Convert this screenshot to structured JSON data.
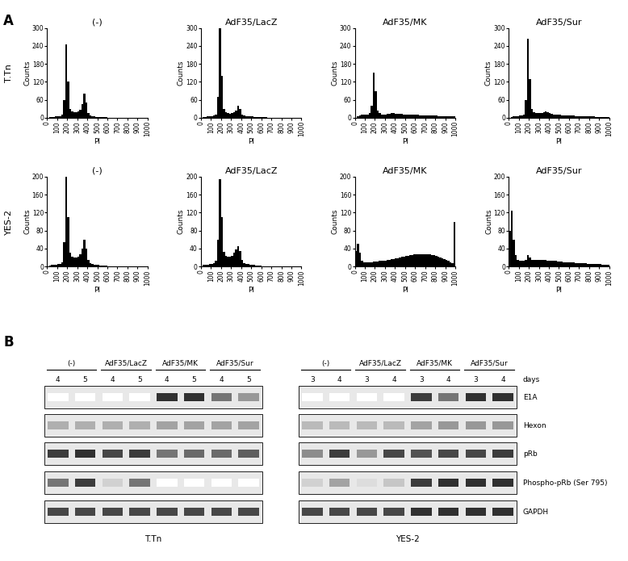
{
  "histogram_panel": {
    "panel_label": "A",
    "row_labels": [
      "T.Tn",
      "YES-2"
    ]
  },
  "chart_data": [
    {
      "type": "histogram",
      "title": "(-)",
      "xlabel": "PI",
      "ylabel": "Counts",
      "color": "#000000",
      "bins": [
        0,
        20,
        40,
        60,
        80,
        100,
        120,
        140,
        160,
        180,
        200,
        220,
        240,
        260,
        280,
        300,
        320,
        340,
        360,
        380,
        400,
        420,
        440,
        460,
        480,
        500,
        520,
        540,
        560,
        580,
        600,
        620,
        640,
        660,
        680,
        700,
        720,
        740,
        760,
        780,
        800,
        820,
        840,
        860,
        880,
        900,
        920,
        940,
        960,
        980,
        1000
      ],
      "counts": [
        0,
        2,
        3,
        3,
        4,
        5,
        6,
        10,
        60,
        245,
        120,
        30,
        22,
        20,
        20,
        22,
        28,
        45,
        80,
        50,
        15,
        8,
        5,
        4,
        3,
        3,
        2,
        2,
        2,
        2,
        1,
        1,
        1,
        1,
        1,
        1,
        1,
        0,
        0,
        0,
        0,
        0,
        0,
        0,
        0,
        0,
        0,
        0,
        0,
        0
      ],
      "xlim": [
        0,
        1000
      ],
      "ylim": [
        0,
        300
      ],
      "xticks": [
        0,
        100,
        200,
        300,
        400,
        500,
        600,
        700,
        800,
        900,
        1000
      ],
      "yticks": [
        0,
        60,
        120,
        180,
        240,
        300
      ]
    },
    {
      "type": "histogram",
      "title": "AdF35/LacZ",
      "xlabel": "PI",
      "ylabel": "Counts",
      "color": "#000000",
      "bins": [
        0,
        20,
        40,
        60,
        80,
        100,
        120,
        140,
        160,
        180,
        200,
        220,
        240,
        260,
        280,
        300,
        320,
        340,
        360,
        380,
        400,
        420,
        440,
        460,
        480,
        500,
        520,
        540,
        560,
        580,
        600,
        620,
        640,
        660,
        680,
        700,
        720,
        740,
        760,
        780,
        800,
        820,
        840,
        860,
        880,
        900,
        920,
        940,
        960,
        980,
        1000
      ],
      "counts": [
        0,
        2,
        3,
        4,
        5,
        6,
        8,
        12,
        70,
        300,
        140,
        30,
        18,
        15,
        14,
        15,
        18,
        25,
        40,
        30,
        12,
        8,
        6,
        5,
        4,
        4,
        3,
        3,
        3,
        2,
        2,
        2,
        2,
        1,
        1,
        1,
        1,
        1,
        1,
        0,
        0,
        0,
        0,
        0,
        0,
        0,
        0,
        0,
        0,
        0
      ],
      "xlim": [
        0,
        1000
      ],
      "ylim": [
        0,
        300
      ],
      "xticks": [
        0,
        100,
        200,
        300,
        400,
        500,
        600,
        700,
        800,
        900,
        1000
      ],
      "yticks": [
        0,
        60,
        120,
        180,
        240,
        300
      ]
    },
    {
      "type": "histogram",
      "title": "AdF35/MK",
      "xlabel": "PI",
      "ylabel": "Counts",
      "color": "#000000",
      "bins": [
        0,
        20,
        40,
        60,
        80,
        100,
        120,
        140,
        160,
        180,
        200,
        220,
        240,
        260,
        280,
        300,
        320,
        340,
        360,
        380,
        400,
        420,
        440,
        460,
        480,
        500,
        520,
        540,
        560,
        580,
        600,
        620,
        640,
        660,
        680,
        700,
        720,
        740,
        760,
        780,
        800,
        820,
        840,
        860,
        880,
        900,
        920,
        940,
        960,
        980,
        1000
      ],
      "counts": [
        0,
        5,
        8,
        10,
        10,
        12,
        12,
        15,
        40,
        150,
        90,
        25,
        15,
        12,
        12,
        12,
        13,
        14,
        16,
        15,
        14,
        14,
        13,
        13,
        12,
        12,
        12,
        11,
        11,
        10,
        10,
        10,
        9,
        9,
        9,
        8,
        8,
        8,
        7,
        7,
        7,
        6,
        6,
        6,
        5,
        5,
        5,
        4,
        4,
        4
      ],
      "xlim": [
        0,
        1000
      ],
      "ylim": [
        0,
        300
      ],
      "xticks": [
        0,
        100,
        200,
        300,
        400,
        500,
        600,
        700,
        800,
        900,
        1000
      ],
      "yticks": [
        0,
        60,
        120,
        180,
        240,
        300
      ]
    },
    {
      "type": "histogram",
      "title": "AdF35/Sur",
      "xlabel": "PI",
      "ylabel": "Counts",
      "color": "#000000",
      "bins": [
        0,
        20,
        40,
        60,
        80,
        100,
        120,
        140,
        160,
        180,
        200,
        220,
        240,
        260,
        280,
        300,
        320,
        340,
        360,
        380,
        400,
        420,
        440,
        460,
        480,
        500,
        520,
        540,
        560,
        580,
        600,
        620,
        640,
        660,
        680,
        700,
        720,
        740,
        760,
        780,
        800,
        820,
        840,
        860,
        880,
        900,
        920,
        940,
        960,
        980,
        1000
      ],
      "counts": [
        0,
        3,
        5,
        6,
        6,
        7,
        8,
        12,
        60,
        265,
        130,
        30,
        18,
        15,
        15,
        15,
        17,
        20,
        22,
        18,
        15,
        13,
        12,
        11,
        10,
        10,
        9,
        9,
        8,
        8,
        7,
        7,
        7,
        6,
        6,
        6,
        5,
        5,
        5,
        4,
        4,
        4,
        4,
        3,
        3,
        3,
        3,
        3,
        2,
        2
      ],
      "xlim": [
        0,
        1000
      ],
      "ylim": [
        0,
        300
      ],
      "xticks": [
        0,
        100,
        200,
        300,
        400,
        500,
        600,
        700,
        800,
        900,
        1000
      ],
      "yticks": [
        0,
        60,
        120,
        180,
        240,
        300
      ]
    },
    {
      "type": "histogram",
      "title": "(-)",
      "xlabel": "PI",
      "ylabel": "Counts",
      "color": "#000000",
      "bins": [
        0,
        20,
        40,
        60,
        80,
        100,
        120,
        140,
        160,
        180,
        200,
        220,
        240,
        260,
        280,
        300,
        320,
        340,
        360,
        380,
        400,
        420,
        440,
        460,
        480,
        500,
        520,
        540,
        560,
        580,
        600,
        620,
        640,
        660,
        680,
        700,
        720,
        740,
        760,
        780,
        800,
        820,
        840,
        860,
        880,
        900,
        920,
        940,
        960,
        980,
        1000
      ],
      "counts": [
        0,
        2,
        3,
        3,
        4,
        5,
        6,
        10,
        55,
        200,
        110,
        30,
        22,
        20,
        20,
        22,
        28,
        40,
        60,
        40,
        14,
        8,
        5,
        4,
        3,
        3,
        2,
        2,
        2,
        2,
        1,
        1,
        1,
        1,
        1,
        1,
        0,
        0,
        0,
        0,
        0,
        0,
        0,
        0,
        0,
        0,
        0,
        0,
        0,
        0
      ],
      "xlim": [
        0,
        1000
      ],
      "ylim": [
        0,
        200
      ],
      "xticks": [
        0,
        100,
        200,
        300,
        400,
        500,
        600,
        700,
        800,
        900,
        1000
      ],
      "yticks": [
        0,
        40,
        80,
        120,
        160,
        200
      ]
    },
    {
      "type": "histogram",
      "title": "AdF35/LacZ",
      "xlabel": "PI",
      "ylabel": "Counts",
      "color": "#000000",
      "bins": [
        0,
        20,
        40,
        60,
        80,
        100,
        120,
        140,
        160,
        180,
        200,
        220,
        240,
        260,
        280,
        300,
        320,
        340,
        360,
        380,
        400,
        420,
        440,
        460,
        480,
        500,
        520,
        540,
        560,
        580,
        600,
        620,
        640,
        660,
        680,
        700,
        720,
        740,
        760,
        780,
        800,
        820,
        840,
        860,
        880,
        900,
        920,
        940,
        960,
        980,
        1000
      ],
      "counts": [
        0,
        3,
        4,
        4,
        5,
        6,
        8,
        12,
        60,
        195,
        110,
        32,
        24,
        22,
        22,
        24,
        30,
        38,
        45,
        35,
        14,
        8,
        6,
        5,
        4,
        3,
        3,
        2,
        2,
        2,
        1,
        1,
        1,
        1,
        1,
        1,
        0,
        0,
        0,
        0,
        0,
        0,
        0,
        0,
        0,
        0,
        0,
        0,
        0,
        0
      ],
      "xlim": [
        0,
        1000
      ],
      "ylim": [
        0,
        200
      ],
      "xticks": [
        0,
        100,
        200,
        300,
        400,
        500,
        600,
        700,
        800,
        900,
        1000
      ],
      "yticks": [
        0,
        40,
        80,
        120,
        160,
        200
      ]
    },
    {
      "type": "histogram",
      "title": "AdF35/MK",
      "xlabel": "PI",
      "ylabel": "Counts",
      "color": "#000000",
      "bins": [
        0,
        20,
        40,
        60,
        80,
        100,
        120,
        140,
        160,
        180,
        200,
        220,
        240,
        260,
        280,
        300,
        320,
        340,
        360,
        380,
        400,
        420,
        440,
        460,
        480,
        500,
        520,
        540,
        560,
        580,
        600,
        620,
        640,
        660,
        680,
        700,
        720,
        740,
        760,
        780,
        800,
        820,
        840,
        860,
        880,
        900,
        920,
        940,
        960,
        980,
        1000
      ],
      "counts": [
        35,
        50,
        30,
        12,
        10,
        10,
        10,
        10,
        10,
        11,
        11,
        11,
        12,
        12,
        13,
        13,
        14,
        15,
        16,
        17,
        18,
        19,
        20,
        21,
        22,
        23,
        24,
        25,
        26,
        27,
        27,
        28,
        28,
        28,
        28,
        28,
        28,
        27,
        26,
        25,
        24,
        22,
        20,
        18,
        16,
        14,
        12,
        10,
        8,
        100
      ],
      "xlim": [
        0,
        1000
      ],
      "ylim": [
        0,
        200
      ],
      "xticks": [
        0,
        100,
        200,
        300,
        400,
        500,
        600,
        700,
        800,
        900,
        1000
      ],
      "yticks": [
        0,
        40,
        80,
        120,
        160,
        200
      ]
    },
    {
      "type": "histogram",
      "title": "AdF35/Sur",
      "xlabel": "PI",
      "ylabel": "Counts",
      "color": "#000000",
      "bins": [
        0,
        20,
        40,
        60,
        80,
        100,
        120,
        140,
        160,
        180,
        200,
        220,
        240,
        260,
        280,
        300,
        320,
        340,
        360,
        380,
        400,
        420,
        440,
        460,
        480,
        500,
        520,
        540,
        560,
        580,
        600,
        620,
        640,
        660,
        680,
        700,
        720,
        740,
        760,
        780,
        800,
        820,
        840,
        860,
        880,
        900,
        920,
        940,
        960,
        980,
        1000
      ],
      "counts": [
        80,
        125,
        60,
        25,
        15,
        12,
        12,
        12,
        15,
        25,
        20,
        15,
        14,
        14,
        14,
        14,
        14,
        14,
        14,
        13,
        13,
        12,
        12,
        12,
        11,
        11,
        11,
        10,
        10,
        10,
        9,
        9,
        9,
        8,
        8,
        8,
        7,
        7,
        7,
        6,
        6,
        6,
        5,
        5,
        5,
        5,
        4,
        4,
        4,
        4
      ],
      "xlim": [
        0,
        1000
      ],
      "ylim": [
        0,
        200
      ],
      "xticks": [
        0,
        100,
        200,
        300,
        400,
        500,
        600,
        700,
        800,
        900,
        1000
      ],
      "yticks": [
        0,
        40,
        80,
        120,
        160,
        200
      ]
    }
  ],
  "western_blot": {
    "panel_label": "B",
    "days_label": "days",
    "groups": [
      "(-)",
      "AdF35/LacZ",
      "AdF35/MK",
      "AdF35/Sur"
    ],
    "rows": [
      "E1A",
      "Hexon",
      "pRb",
      "Phospho-pRb (Ser 795)",
      "GAPDH"
    ],
    "panels": [
      {
        "cell_line": "T.Tn",
        "days": [
          4,
          5
        ],
        "intensities": [
          [
            0,
            0,
            0,
            0,
            0.9,
            0.9,
            0.6,
            0.45
          ],
          [
            0.35,
            0.35,
            0.35,
            0.35,
            0.4,
            0.4,
            0.4,
            0.4
          ],
          [
            0.85,
            0.9,
            0.8,
            0.85,
            0.6,
            0.65,
            0.65,
            0.7
          ],
          [
            0.6,
            0.85,
            0.2,
            0.6,
            0,
            0,
            0,
            0
          ],
          [
            0.8,
            0.8,
            0.8,
            0.8,
            0.8,
            0.8,
            0.8,
            0.8
          ]
        ]
      },
      {
        "cell_line": "YES-2",
        "days": [
          3,
          4
        ],
        "intensities": [
          [
            0,
            0,
            0,
            0,
            0.85,
            0.6,
            0.9,
            0.9
          ],
          [
            0.3,
            0.3,
            0.3,
            0.3,
            0.4,
            0.45,
            0.45,
            0.45
          ],
          [
            0.5,
            0.85,
            0.45,
            0.8,
            0.75,
            0.8,
            0.8,
            0.85
          ],
          [
            0.2,
            0.4,
            0.15,
            0.25,
            0.85,
            0.9,
            0.9,
            0.9
          ],
          [
            0.8,
            0.8,
            0.8,
            0.8,
            0.9,
            0.9,
            0.9,
            0.9
          ]
        ]
      }
    ]
  }
}
